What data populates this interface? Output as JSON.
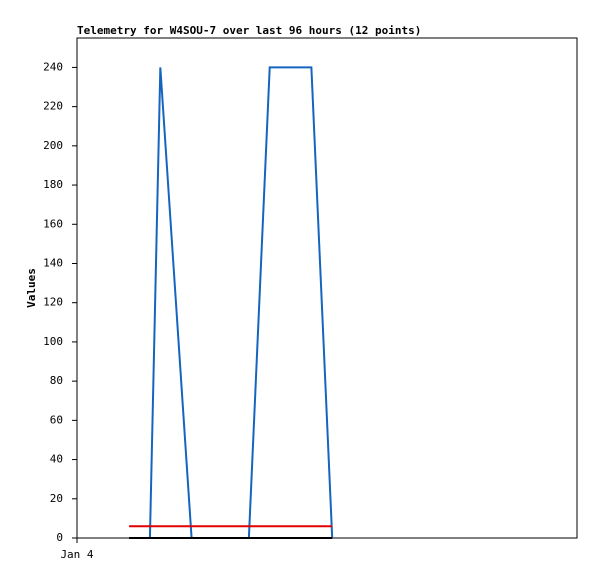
{
  "chart_data": {
    "type": "line",
    "title": "Telemetry for W4SOU-7 over last 96 hours (12 points)",
    "y_label": "Values",
    "x": [
      10,
      12,
      14,
      16,
      22,
      27,
      33,
      37,
      41,
      45,
      47,
      49
    ],
    "xlim": [
      0,
      96
    ],
    "xticks": [
      {
        "value": 0,
        "label": "Jan 4"
      }
    ],
    "ylim": [
      0,
      255
    ],
    "yticks": [
      0,
      20,
      40,
      60,
      80,
      100,
      120,
      140,
      160,
      180,
      200,
      220,
      240
    ],
    "series": [
      {
        "color": "#1565c0",
        "values": [
          0,
          0,
          0,
          240,
          0,
          0,
          0,
          240,
          240,
          240,
          120,
          0
        ]
      },
      {
        "color": "#000000",
        "values": [
          0,
          0,
          0,
          0,
          0,
          0,
          0,
          0,
          0,
          0,
          0,
          0
        ]
      },
      {
        "color": "#e00000",
        "values": [
          6,
          6,
          6,
          6,
          6,
          6,
          6,
          6,
          6,
          6,
          6,
          6
        ]
      }
    ]
  }
}
